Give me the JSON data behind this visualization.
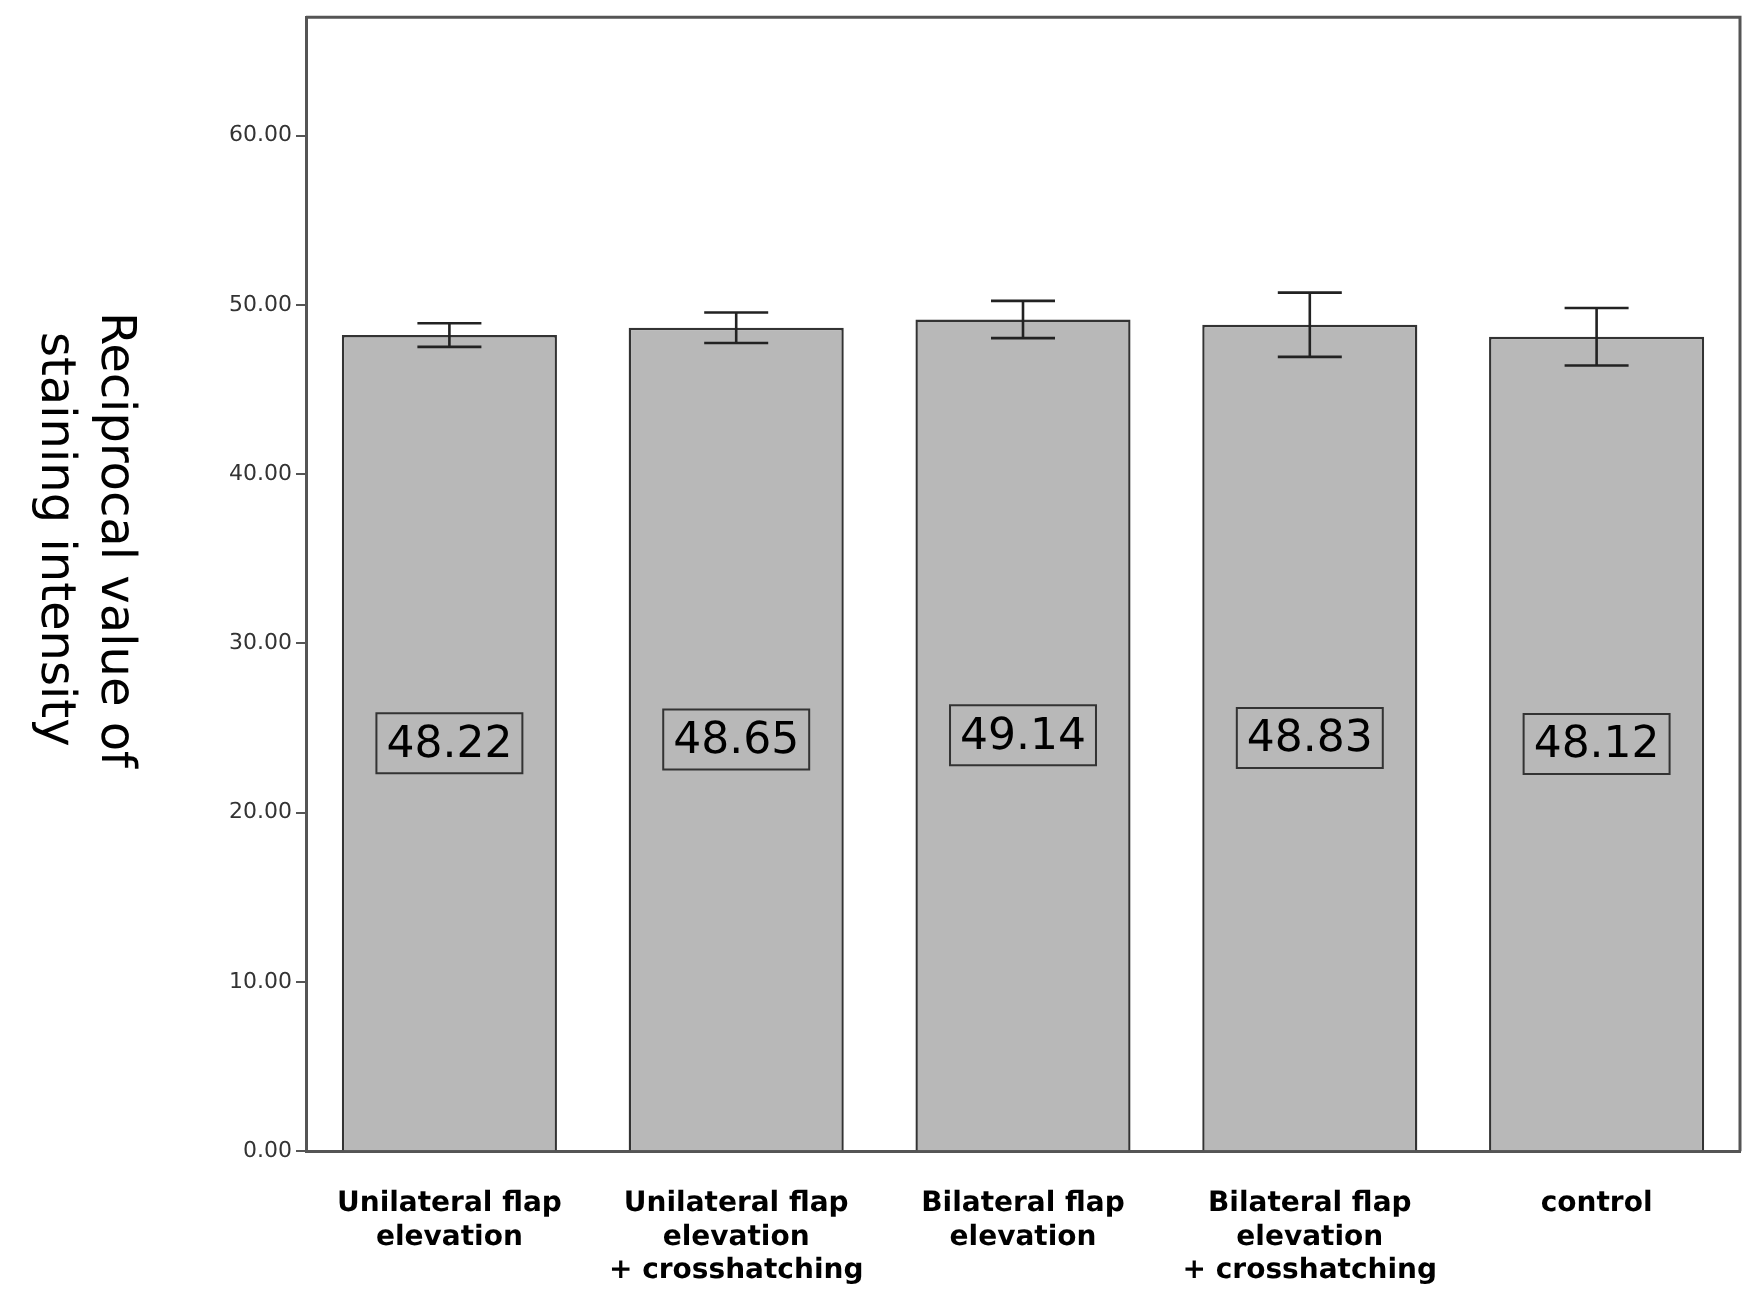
{
  "chart_data": {
    "type": "bar",
    "ylabel": "Reciprocal value of\nstaining intensity",
    "categories": [
      "Unilateral flap\nelevation",
      "Unilateral flap\nelevation\n+ crosshatching",
      "Bilateral flap\nelevation",
      "Bilateral flap\nelevation\n+ crosshatching",
      "control"
    ],
    "values": [
      48.22,
      48.65,
      49.14,
      48.83,
      48.12
    ],
    "errors": [
      0.7,
      0.9,
      1.1,
      1.9,
      1.7
    ],
    "color": "#b8b8b8",
    "ylim": [
      0,
      67
    ],
    "yticks": [
      {
        "value": 0,
        "label": "0.00"
      },
      {
        "value": 10,
        "label": "10.00"
      },
      {
        "value": 20,
        "label": "20.00"
      },
      {
        "value": 30,
        "label": "30.00"
      },
      {
        "value": 40,
        "label": "40.00"
      },
      {
        "value": 50,
        "label": "50.00"
      },
      {
        "value": 60,
        "label": "60.00"
      }
    ],
    "data_labels": true,
    "grid": false,
    "legend": false
  }
}
